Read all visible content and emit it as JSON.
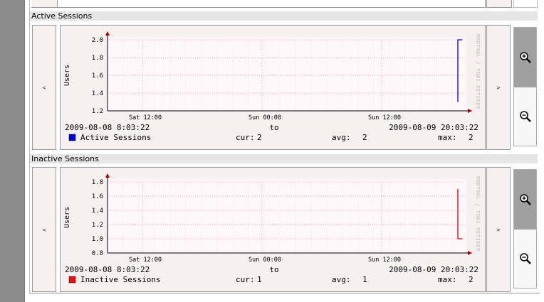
{
  "sections": [
    {
      "title": "Active Sessions",
      "nav_prev": "<",
      "nav_next": ">",
      "chart_data": {
        "type": "line",
        "ylabel": "Users",
        "ylim": [
          1.2,
          2.0
        ],
        "yticks": [
          "2.0",
          "1.8",
          "1.6",
          "1.4",
          "1.2"
        ],
        "xticks": [
          "Sat 12:00",
          "Sun 00:00",
          "Sun 12:00"
        ],
        "watermark": "RRDTOOL / TOBI OETIKER",
        "series": [
          {
            "name": "Active Sessions",
            "color": "#0000cc",
            "values": [
              1.3,
              2.0,
              2.0
            ]
          }
        ],
        "start": "2009-08-08 8:03:22",
        "to": "to",
        "end": "2009-08-09 20:03:22",
        "legend_label": "Active Sessions",
        "legend_color": "#0000dd",
        "cur_label": "cur:",
        "cur": "2",
        "avg_label": "avg:",
        "avg": "2",
        "max_label": "max:",
        "max": "2"
      }
    },
    {
      "title": "Inactive Sessions",
      "nav_prev": "<",
      "nav_next": ">",
      "chart_data": {
        "type": "line",
        "ylabel": "Users",
        "ylim": [
          0.8,
          1.8
        ],
        "yticks": [
          "1.8",
          "1.6",
          "1.4",
          "1.2",
          "1.0",
          "0.8"
        ],
        "xticks": [
          "Sat 12:00",
          "Sun 00:00",
          "Sun 12:00"
        ],
        "watermark": "RRDTOOL / TOBI OETIKER",
        "series": [
          {
            "name": "Inactive Sessions",
            "color": "#dd0000",
            "values": [
              1.7,
              1.0,
              1.0
            ]
          }
        ],
        "start": "2009-08-08 8:03:22",
        "to": "to",
        "end": "2009-08-09 20:03:22",
        "legend_label": "Inactive Sessions",
        "legend_color": "#ee1111",
        "cur_label": "cur:",
        "cur": "1",
        "avg_label": "avg:",
        "avg": "1",
        "max_label": "max:",
        "max": "2"
      }
    }
  ],
  "icons": {
    "zoom_in": "zoom-in-icon",
    "zoom_out": "zoom-out-icon"
  }
}
